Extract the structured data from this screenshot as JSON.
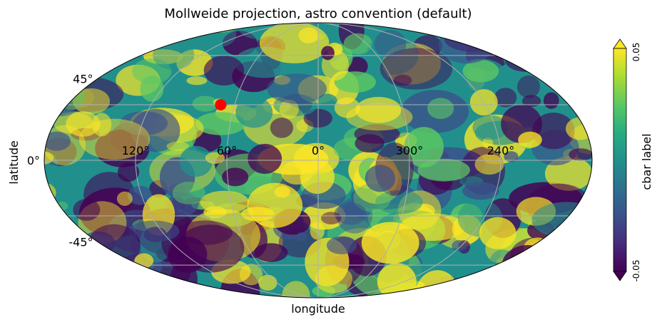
{
  "chart_data": {
    "type": "heatmap",
    "projection": "mollweide",
    "title": "Mollweide projection, astro convention (default)",
    "xlabel": "longitude",
    "ylabel": "latitude",
    "longitude_tick_labels": [
      "120°",
      "60°",
      "0°",
      "300°",
      "240°"
    ],
    "longitude_ticks": [
      120,
      60,
      0,
      300,
      240
    ],
    "latitude_tick_labels": [
      "45°",
      "0°",
      "-45°"
    ],
    "latitude_ticks": [
      45,
      0,
      -45
    ],
    "grid": true,
    "colormap": "viridis",
    "colorbar": {
      "label": "cbar label",
      "min": -0.05,
      "max": 0.05,
      "tick_labels": [
        "0.05",
        "-0.05"
      ],
      "extend": "both",
      "placement": "right"
    },
    "marker": {
      "lon": 70,
      "lat": 30,
      "color": "#ff0000"
    }
  }
}
